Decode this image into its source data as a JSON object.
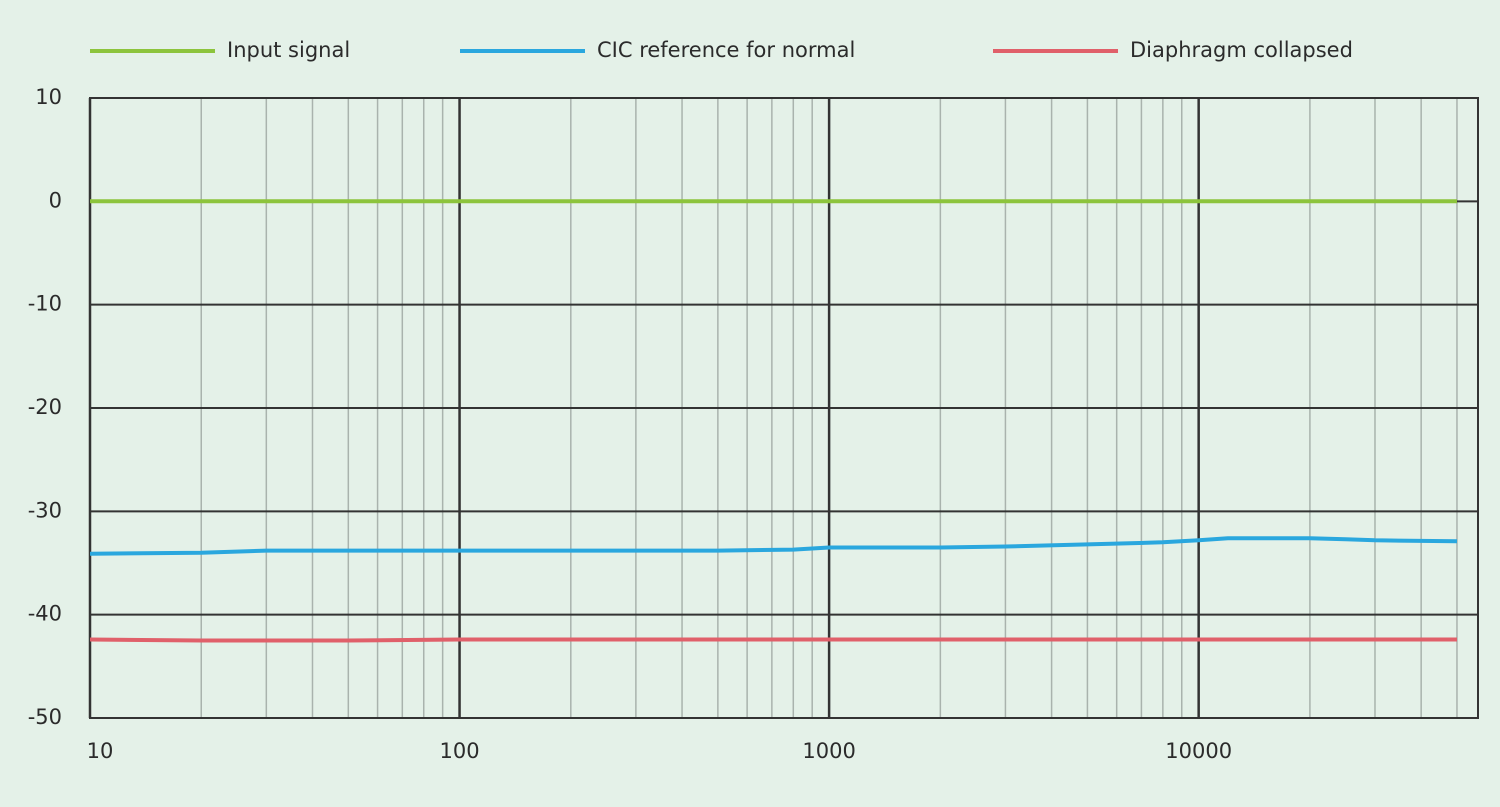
{
  "chart_data": {
    "type": "line",
    "x": [
      10,
      20,
      30,
      50,
      100,
      200,
      500,
      800,
      1000,
      2000,
      3000,
      5000,
      8000,
      10000,
      12000,
      20000,
      25000,
      30000,
      50000
    ],
    "series": [
      {
        "name": "Input signal",
        "color": "#8cc43c",
        "values": [
          0,
          0,
          0,
          0,
          0,
          0,
          0,
          0,
          0,
          0,
          0,
          0,
          0,
          0,
          0,
          0,
          0,
          0,
          0
        ]
      },
      {
        "name": "CIC reference for normal",
        "color": "#2aa7de",
        "values": [
          -34.1,
          -34.0,
          -33.8,
          -33.8,
          -33.8,
          -33.8,
          -33.8,
          -33.7,
          -33.5,
          -33.5,
          -33.4,
          -33.2,
          -33.0,
          -32.8,
          -32.6,
          -32.6,
          -32.7,
          -32.8,
          -32.9
        ]
      },
      {
        "name": "Diaphragm collapsed",
        "color": "#e0606a",
        "values": [
          -42.4,
          -42.5,
          -42.5,
          -42.5,
          -42.4,
          -42.4,
          -42.4,
          -42.4,
          -42.4,
          -42.4,
          -42.4,
          -42.4,
          -42.4,
          -42.4,
          -42.4,
          -42.4,
          -42.4,
          -42.4,
          -42.4
        ]
      }
    ],
    "xlim": [
      10,
      57000
    ],
    "xticks": [
      10,
      100,
      1000,
      10000
    ],
    "x_minor_ticks": [
      20,
      30,
      40,
      50,
      60,
      70,
      80,
      90,
      200,
      300,
      400,
      500,
      600,
      700,
      800,
      900,
      2000,
      3000,
      4000,
      5000,
      6000,
      7000,
      8000,
      9000,
      20000,
      30000,
      40000,
      50000
    ],
    "x_log": true,
    "ylim": [
      -50,
      10
    ],
    "yticks": [
      -50,
      -40,
      -30,
      -20,
      -10,
      0,
      10
    ],
    "grid": true,
    "legend": "top"
  }
}
